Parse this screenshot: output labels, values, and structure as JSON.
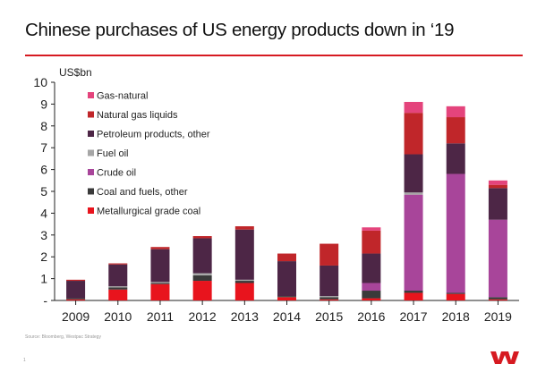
{
  "slide": {
    "title": "Chinese purchases of US energy products down in ‘19",
    "source": "Source: Bloomberg, Westpac Strategy",
    "page_number": "1",
    "brand_logo": "westpac-w-logo",
    "accent_color": "#d61a21"
  },
  "chart_data": {
    "type": "stacked-bar",
    "title": "Chinese purchases of US energy products down in ‘19",
    "unit_label": "US$bn",
    "xlabel": "",
    "ylabel": "US$bn",
    "ylim": [
      0,
      10
    ],
    "y_ticks": [
      {
        "value": 0,
        "label": "-"
      },
      {
        "value": 1,
        "label": "1"
      },
      {
        "value": 2,
        "label": "2"
      },
      {
        "value": 3,
        "label": "3"
      },
      {
        "value": 4,
        "label": "4"
      },
      {
        "value": 5,
        "label": "5"
      },
      {
        "value": 6,
        "label": "6"
      },
      {
        "value": 7,
        "label": "7"
      },
      {
        "value": 8,
        "label": "8"
      },
      {
        "value": 9,
        "label": "9"
      },
      {
        "value": 10,
        "label": "10"
      }
    ],
    "grid": false,
    "legend_position": "top-left",
    "categories": [
      "2009",
      "2010",
      "2011",
      "2012",
      "2013",
      "2014",
      "2015",
      "2016",
      "2017",
      "2018",
      "2019"
    ],
    "series": [
      {
        "name": "Metallurgical grade coal",
        "color": "#e8141d",
        "values": [
          0.05,
          0.5,
          0.75,
          0.9,
          0.8,
          0.15,
          0.05,
          0.1,
          0.35,
          0.3,
          0.05
        ]
      },
      {
        "name": "Coal and fuels, other",
        "color": "#3a3a3a",
        "values": [
          0.05,
          0.1,
          0.05,
          0.25,
          0.1,
          0.05,
          0.1,
          0.35,
          0.1,
          0.05,
          0.1
        ]
      },
      {
        "name": "Crude oil",
        "color": "#a8459a",
        "values": [
          0,
          0,
          0,
          0,
          0,
          0,
          0,
          0.35,
          4.4,
          5.45,
          3.55
        ]
      },
      {
        "name": "Fuel oil",
        "color": "#a6a6a6",
        "values": [
          0,
          0.05,
          0.05,
          0.1,
          0.05,
          0,
          0.05,
          0,
          0.1,
          0,
          0
        ]
      },
      {
        "name": "Petroleum products, other",
        "color": "#4d2646",
        "values": [
          0.8,
          1.0,
          1.5,
          1.6,
          2.3,
          1.6,
          1.4,
          1.35,
          1.75,
          1.4,
          1.45
        ]
      },
      {
        "name": "Natural gas liquids",
        "color": "#c0262a",
        "values": [
          0.05,
          0.05,
          0.1,
          0.1,
          0.15,
          0.35,
          1.0,
          1.05,
          1.9,
          1.2,
          0.15
        ]
      },
      {
        "name": "Gas-natural",
        "color": "#e4447c",
        "values": [
          0,
          0,
          0,
          0,
          0,
          0,
          0,
          0.15,
          0.5,
          0.5,
          0.2
        ]
      }
    ],
    "legend_order": [
      "Gas-natural",
      "Natural gas liquids",
      "Petroleum products, other",
      "Fuel oil",
      "Crude oil",
      "Coal and fuels, other",
      "Metallurgical grade coal"
    ]
  }
}
